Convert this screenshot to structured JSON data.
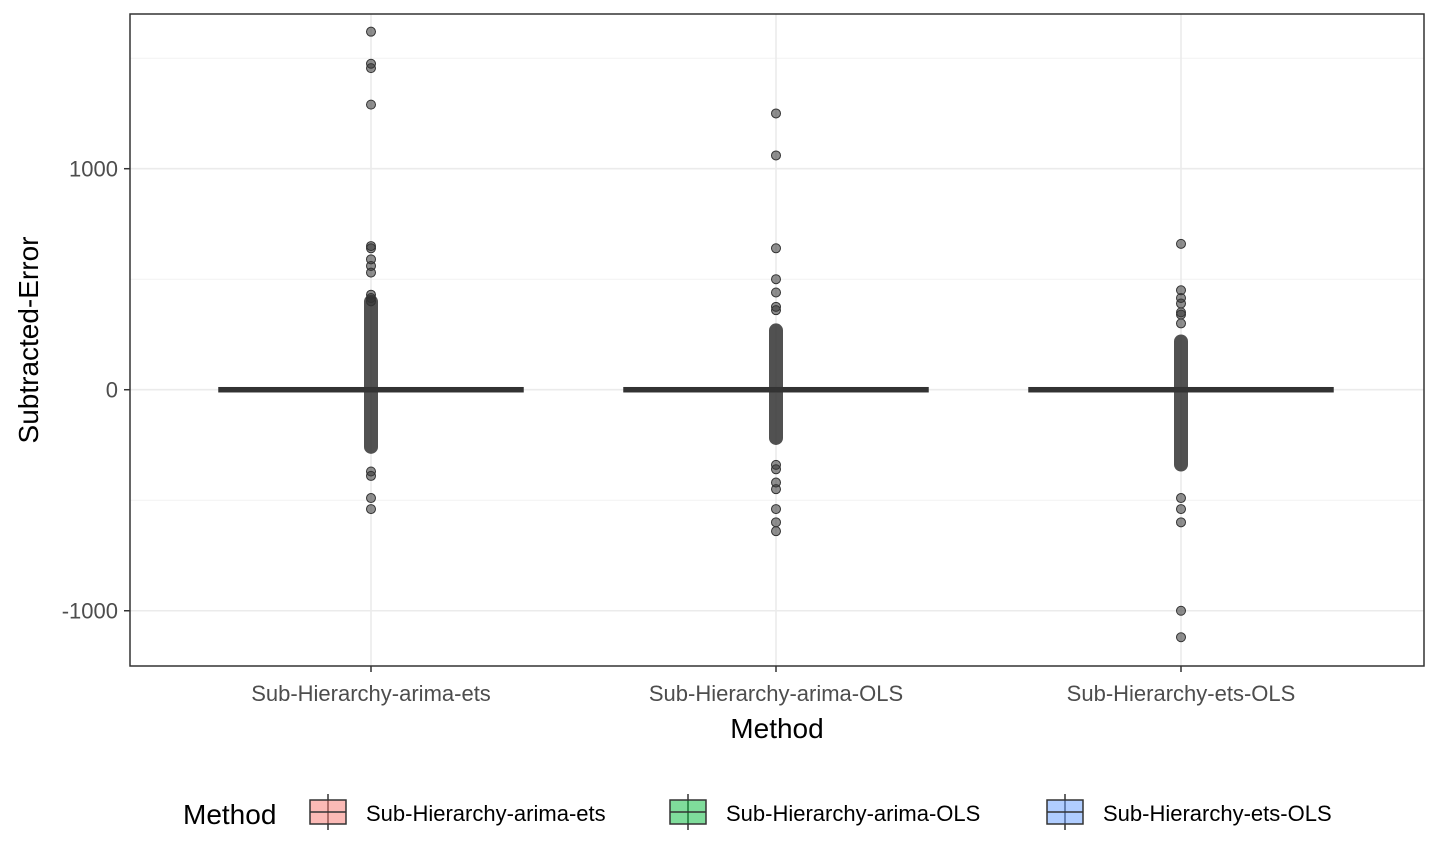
{
  "chart_data": {
    "type": "box",
    "xlabel": "Method",
    "ylabel": "Subtracted-Error",
    "ylim": [
      -1250,
      1700
    ],
    "yticks": [
      -1000,
      0,
      1000
    ],
    "grid": true,
    "legend": {
      "title": "Method",
      "placement": "bottom",
      "entries": [
        {
          "label": "Sub-Hierarchy-arima-ets",
          "color": "#F8766D"
        },
        {
          "label": "Sub-Hierarchy-arima-OLS",
          "color": "#00BA38"
        },
        {
          "label": "Sub-Hierarchy-ets-OLS",
          "color": "#619CFF"
        }
      ]
    },
    "categories": [
      "Sub-Hierarchy-arima-ets",
      "Sub-Hierarchy-arima-OLS",
      "Sub-Hierarchy-ets-OLS"
    ],
    "series": [
      {
        "category": "Sub-Hierarchy-arima-ets",
        "median": 0,
        "q1": 0,
        "q3": 0,
        "outlier_band": [
          -290,
          430
        ],
        "outliers": [
          1620,
          1475,
          1455,
          1290,
          650,
          640,
          590,
          560,
          530,
          430,
          415,
          400,
          -370,
          -390,
          -490,
          -540
        ]
      },
      {
        "category": "Sub-Hierarchy-arima-OLS",
        "median": 0,
        "q1": 0,
        "q3": 0,
        "outlier_band": [
          -250,
          300
        ],
        "outliers": [
          1250,
          1060,
          640,
          500,
          440,
          375,
          360,
          -340,
          -360,
          -420,
          -450,
          -540,
          -600,
          -640
        ]
      },
      {
        "category": "Sub-Hierarchy-ets-OLS",
        "median": 0,
        "q1": 0,
        "q3": 0,
        "outlier_band": [
          -370,
          250
        ],
        "outliers": [
          660,
          450,
          415,
          390,
          350,
          340,
          300,
          -490,
          -540,
          -600,
          -1000,
          -1120
        ]
      }
    ]
  }
}
